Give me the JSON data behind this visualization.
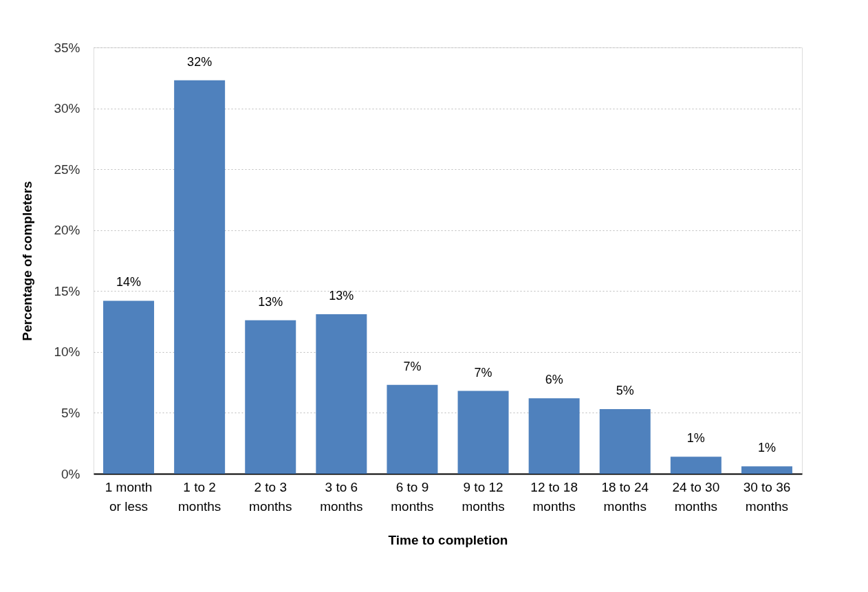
{
  "chart_data": {
    "type": "bar",
    "xlabel": "Time to completion",
    "ylabel": "Percentage of completers",
    "categories": [
      "1 month\nor less",
      "1 to 2\nmonths",
      "2 to 3\nmonths",
      "3 to 6\nmonths",
      "6 to 9\nmonths",
      "9 to 12\nmonths",
      "12 to 18\nmonths",
      "18 to 24\nmonths",
      "24 to 30\nmonths",
      "30 to 36\nmonths"
    ],
    "values": [
      14.2,
      32.3,
      12.6,
      13.1,
      7.3,
      6.8,
      6.2,
      5.3,
      1.4,
      0.6
    ],
    "value_labels": [
      "14%",
      "32%",
      "13%",
      "13%",
      "7%",
      "7%",
      "6%",
      "5%",
      "1%",
      "1%"
    ],
    "color": "#4f81bd",
    "ylim": [
      0,
      35
    ],
    "yticks": [
      {
        "value": 0,
        "label": "0%"
      },
      {
        "value": 5,
        "label": "5%"
      },
      {
        "value": 10,
        "label": "10%"
      },
      {
        "value": 15,
        "label": "15%"
      },
      {
        "value": 20,
        "label": "20%"
      },
      {
        "value": 25,
        "label": "25%"
      },
      {
        "value": 30,
        "label": "30%"
      },
      {
        "value": 35,
        "label": "35%"
      }
    ],
    "grid": "y"
  }
}
